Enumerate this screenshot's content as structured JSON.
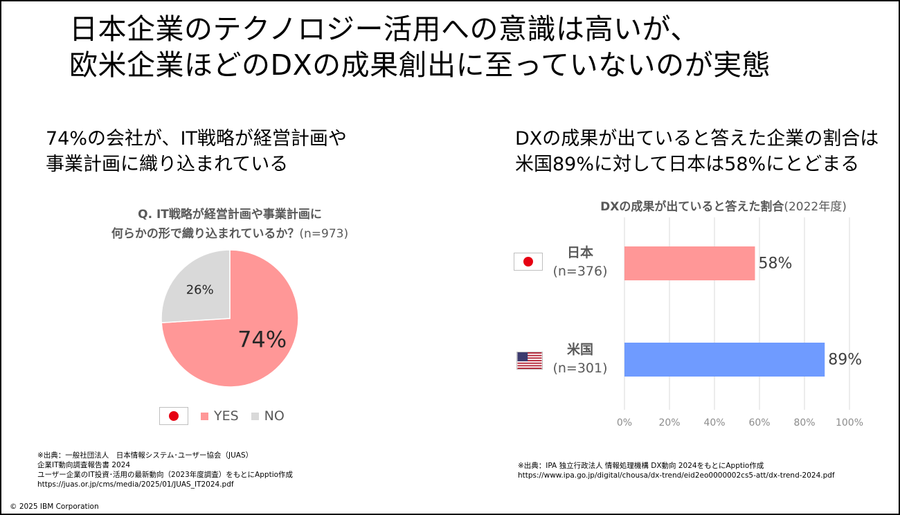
{
  "title_lines": [
    "日本企業のテクノロジー活用への意識は高いが、",
    "欧米企業ほどのDXの成果創出に至っていないのが実態"
  ],
  "left": {
    "headline_lines": [
      "74%の会社が、IT戦略が経営計画や",
      "事業計画に織り込まれている"
    ],
    "chart_title_line1": "Q. IT戦略が経営計画や事業計画に",
    "chart_title_line2_bold": "何らかの形で織り込まれているか？",
    "chart_title_line2_light": "(n=973)",
    "legend": {
      "flag": "japan-flag",
      "yes": "YES",
      "no": "NO"
    },
    "source_lines": [
      "※出典：一般社団法人　日本情報システム･ユーザー協会（JUAS）",
      "企業IT動向調査報告書 2024",
      "ユーザー企業のIT投資･活用の最新動向（2023年度調査）をもとにApptio作成",
      "https://juas.or.jp/cms/media/2025/01/JUAS_IT2024.pdf"
    ]
  },
  "right": {
    "headline_lines": [
      "DXの成果が出ていると答えた企業の割合は",
      "米国89%に対して日本は58%にとどまる"
    ],
    "chart_title_bold": "DXの成果が出ていると答えた割合",
    "chart_title_light": "(2022年度)",
    "source_lines": [
      "※出典：IPA 独立行政法人 情報処理機構 DX動向 2024をもとにApptio作成",
      "https://www.ipa.go.jp/digital/chousa/dx-trend/eid2eo0000002cs5-att/dx-trend-2024.pdf"
    ]
  },
  "copyright": "© 2025 IBM Corporation",
  "chart_data": [
    {
      "type": "pie",
      "title": "Q. IT戦略が経営計画や事業計画に何らかの形で織り込まれているか？(n=973)",
      "categories": [
        "YES",
        "NO"
      ],
      "values": [
        74,
        26
      ],
      "labels": [
        "74%",
        "26%"
      ],
      "colors": [
        "#ff9797",
        "#d9d9d9"
      ],
      "legend": "bottom"
    },
    {
      "type": "bar",
      "orientation": "horizontal",
      "title": "DXの成果が出ていると答えた割合(2022年度)",
      "categories": [
        {
          "name": "日本",
          "n": "(n=376)",
          "flag": "japan-flag"
        },
        {
          "name": "米国",
          "n": "(n=301)",
          "flag": "usa-flag"
        }
      ],
      "values": [
        58,
        89
      ],
      "labels": [
        "58%",
        "89%"
      ],
      "colors": [
        "#ff9797",
        "#6f9bff"
      ],
      "xlim": [
        0,
        100
      ],
      "xticks": [
        "0%",
        "20%",
        "40%",
        "60%",
        "80%",
        "100%"
      ],
      "grid": true
    }
  ]
}
